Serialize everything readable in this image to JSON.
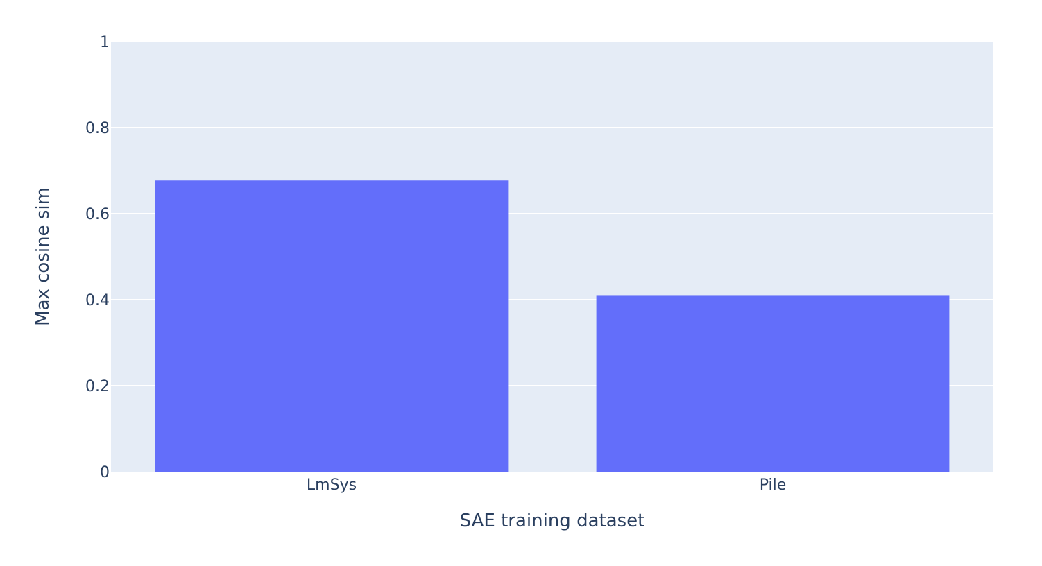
{
  "chart_data": {
    "type": "bar",
    "categories": [
      "LmSys",
      "Pile"
    ],
    "values": [
      0.677,
      0.409
    ],
    "title": "",
    "xlabel": "SAE training dataset",
    "ylabel": "Max cosine sim",
    "ylim": [
      0,
      1
    ],
    "yticks": [
      0,
      0.2,
      0.4,
      0.6,
      0.8,
      1
    ],
    "ytick_labels": [
      "0",
      "0.2",
      "0.4",
      "0.6",
      "0.8",
      "1"
    ],
    "grid": true,
    "legend": "none",
    "colors": {
      "bar": "#636efa",
      "plot_background": "#e5ecf6",
      "gridline": "#ffffff",
      "text": "#2a3f5f"
    }
  }
}
